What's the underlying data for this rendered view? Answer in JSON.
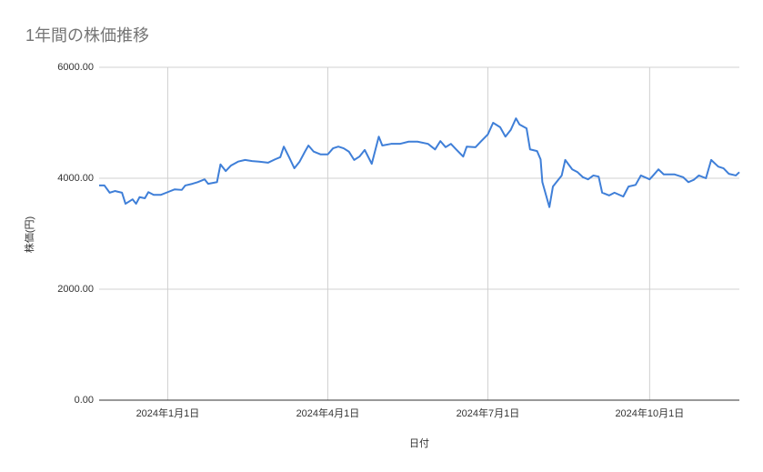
{
  "chart_data": {
    "type": "line",
    "title": "1年間の株価推移",
    "x_label": "日付",
    "y_label": "株価(円)",
    "x": [
      "2023-11-23",
      "2023-11-26",
      "2023-11-29",
      "2023-12-02",
      "2023-12-06",
      "2023-12-08",
      "2023-12-12",
      "2023-12-14",
      "2023-12-16",
      "2023-12-19",
      "2023-12-21",
      "2023-12-24",
      "2023-12-28",
      "2024-01-01",
      "2024-01-05",
      "2024-01-09",
      "2024-01-11",
      "2024-01-15",
      "2024-01-18",
      "2024-01-22",
      "2024-01-24",
      "2024-01-29",
      "2024-01-31",
      "2024-02-03",
      "2024-02-06",
      "2024-02-10",
      "2024-02-14",
      "2024-02-18",
      "2024-02-22",
      "2024-02-27",
      "2024-03-02",
      "2024-03-05",
      "2024-03-07",
      "2024-03-10",
      "2024-03-13",
      "2024-03-16",
      "2024-03-19",
      "2024-03-21",
      "2024-03-24",
      "2024-03-28",
      "2024-04-01",
      "2024-04-04",
      "2024-04-07",
      "2024-04-10",
      "2024-04-13",
      "2024-04-16",
      "2024-04-19",
      "2024-04-22",
      "2024-04-26",
      "2024-04-30",
      "2024-05-02",
      "2024-05-07",
      "2024-05-12",
      "2024-05-17",
      "2024-05-22",
      "2024-05-28",
      "2024-06-01",
      "2024-06-04",
      "2024-06-07",
      "2024-06-10",
      "2024-06-13",
      "2024-06-17",
      "2024-06-19",
      "2024-06-24",
      "2024-06-27",
      "2024-07-01",
      "2024-07-04",
      "2024-07-08",
      "2024-07-11",
      "2024-07-14",
      "2024-07-17",
      "2024-07-19",
      "2024-07-23",
      "2024-07-25",
      "2024-07-29",
      "2024-07-31",
      "2024-08-01",
      "2024-08-05",
      "2024-08-07",
      "2024-08-09",
      "2024-08-12",
      "2024-08-14",
      "2024-08-18",
      "2024-08-21",
      "2024-08-24",
      "2024-08-27",
      "2024-08-30",
      "2024-09-02",
      "2024-09-04",
      "2024-09-08",
      "2024-09-11",
      "2024-09-16",
      "2024-09-19",
      "2024-09-23",
      "2024-09-26",
      "2024-10-01",
      "2024-10-03",
      "2024-10-06",
      "2024-10-09",
      "2024-10-15",
      "2024-10-20",
      "2024-10-23",
      "2024-10-26",
      "2024-10-29",
      "2024-11-02",
      "2024-11-05",
      "2024-11-09",
      "2024-11-12",
      "2024-11-15",
      "2024-11-19",
      "2024-11-21"
    ],
    "values": [
      3870,
      3870,
      3740,
      3770,
      3740,
      3540,
      3620,
      3540,
      3660,
      3640,
      3750,
      3700,
      3700,
      3750,
      3800,
      3790,
      3870,
      3900,
      3930,
      3980,
      3900,
      3930,
      4250,
      4130,
      4230,
      4300,
      4330,
      4310,
      4300,
      4280,
      4340,
      4380,
      4570,
      4380,
      4180,
      4300,
      4480,
      4590,
      4480,
      4430,
      4430,
      4540,
      4570,
      4540,
      4480,
      4330,
      4390,
      4510,
      4260,
      4750,
      4590,
      4620,
      4620,
      4660,
      4660,
      4620,
      4520,
      4670,
      4560,
      4620,
      4520,
      4390,
      4570,
      4560,
      4660,
      4790,
      5000,
      4920,
      4750,
      4870,
      5080,
      4970,
      4900,
      4520,
      4490,
      4340,
      3930,
      3480,
      3850,
      3930,
      4050,
      4330,
      4160,
      4110,
      4020,
      3980,
      4050,
      4030,
      3740,
      3690,
      3740,
      3670,
      3850,
      3880,
      4050,
      3980,
      4050,
      4160,
      4070,
      4070,
      4020,
      3930,
      3970,
      4050,
      4000,
      4330,
      4210,
      4180,
      4080,
      4050,
      4110
    ],
    "color": "#3f7fd8",
    "xlim": [
      "2023-11-23",
      "2024-11-21"
    ],
    "xticks": [
      {
        "value": "2024-01-01",
        "label": "2024年1月1日"
      },
      {
        "value": "2024-04-01",
        "label": "2024年4月1日"
      },
      {
        "value": "2024-07-01",
        "label": "2024年7月1日"
      },
      {
        "value": "2024-10-01",
        "label": "2024年10月1日"
      }
    ],
    "ylim": [
      0,
      6000
    ],
    "yticks": [
      {
        "value": 0,
        "label": "0.00"
      },
      {
        "value": 2000,
        "label": "2000.00"
      },
      {
        "value": 4000,
        "label": "4000.00"
      },
      {
        "value": 6000,
        "label": "6000.00"
      }
    ],
    "grid": true
  }
}
